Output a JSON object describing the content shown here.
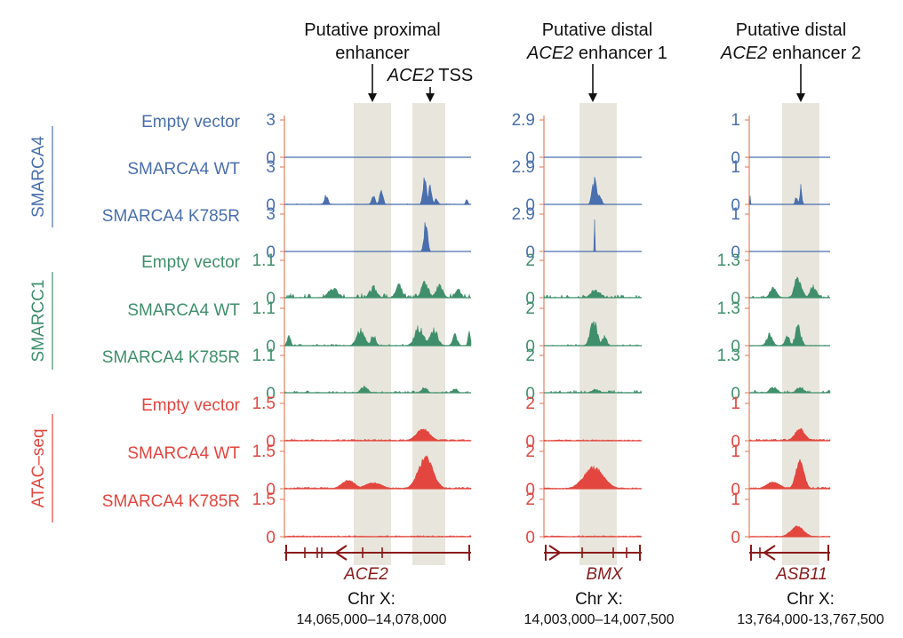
{
  "chart_data": {
    "type": "genome-browser-tracks",
    "colors": {
      "smarca4": "#4a6fae",
      "smarcc1": "#3f8f6c",
      "atac": "#e2463f",
      "gene": "#8b1a1a",
      "highlight": "#e8e6dc",
      "axis": "#e48a6e"
    },
    "groups": [
      {
        "name": "SMARCA4",
        "color": "#4a6fae"
      },
      {
        "name": "SMARCC1",
        "color": "#3f8f6c"
      },
      {
        "name": "ATAC–seq",
        "color": "#e2463f"
      }
    ],
    "tracks": [
      {
        "group": 0,
        "label": "Empty vector"
      },
      {
        "group": 0,
        "label": "SMARCA4 WT"
      },
      {
        "group": 0,
        "label": "SMARCA4 K785R"
      },
      {
        "group": 1,
        "label": "Empty vector"
      },
      {
        "group": 1,
        "label": "SMARCA4 WT"
      },
      {
        "group": 1,
        "label": "SMARCA4 K785R"
      },
      {
        "group": 2,
        "label": "Empty vector"
      },
      {
        "group": 2,
        "label": "SMARCA4 WT"
      },
      {
        "group": 2,
        "label": "SMARCA4 K785R"
      }
    ],
    "panels": [
      {
        "headers": [
          {
            "lines": [
              [
                {
                  "t": "Putative proximal",
                  "i": false
                }
              ],
              [
                {
                  "t": "enhancer",
                  "i": false
                }
              ]
            ]
          },
          {
            "lines": [
              [
                {
                  "t": "ACE2",
                  "i": true
                },
                {
                  "t": " TSS",
                  "i": false
                }
              ]
            ]
          }
        ],
        "ymax": [
          "3",
          "3",
          "3",
          "1.1",
          "1.1",
          "1.1",
          "1.5",
          "1.5",
          "1.5"
        ],
        "ymin": "0",
        "gene": "ACE2",
        "strand": "-",
        "chrom": "Chr X:",
        "range": "14,065,000–14,078,000"
      },
      {
        "headers": [
          {
            "lines": [
              [
                {
                  "t": "Putative distal",
                  "i": false
                }
              ],
              [
                {
                  "t": "ACE2",
                  "i": true
                },
                {
                  "t": " enhancer 1",
                  "i": false
                }
              ]
            ]
          }
        ],
        "ymax": [
          "2.9",
          "2.9",
          "2.9",
          "2",
          "2",
          "2",
          "2",
          "2",
          "2"
        ],
        "ymin": "0",
        "gene": "BMX",
        "strand": "+",
        "chrom": "Chr X:",
        "range": "14,003,000–14,007,500"
      },
      {
        "headers": [
          {
            "lines": [
              [
                {
                  "t": "Putative distal",
                  "i": false
                }
              ],
              [
                {
                  "t": "ACE2",
                  "i": true
                },
                {
                  "t": " enhancer 2",
                  "i": false
                }
              ]
            ]
          }
        ],
        "ymax": [
          "1",
          "1",
          "1",
          "1.3",
          "1.3",
          "1.3",
          "1",
          "1",
          "1"
        ],
        "ymin": "0",
        "gene": "ASB11",
        "strand": "-",
        "chrom": "Chr X:",
        "range": "13,764,000-13,767,500"
      }
    ]
  }
}
